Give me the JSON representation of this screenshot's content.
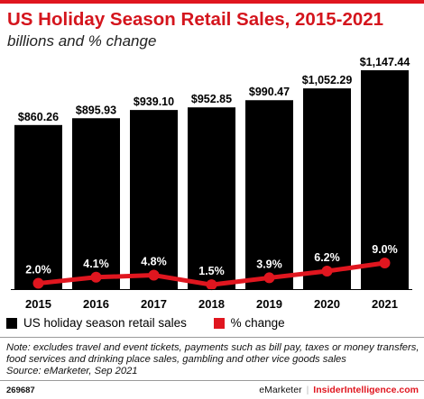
{
  "header": {
    "title": "US Holiday Season Retail Sales, 2015-2021",
    "subtitle": "billions and % change"
  },
  "colors": {
    "accent": "#e0161f",
    "bars": "#000000",
    "bar_labels": "#000000",
    "title": "#d4151d"
  },
  "legend": {
    "bars_label": "US holiday season retail sales",
    "line_label": "% change"
  },
  "note": {
    "line1": "Note: excludes travel and event tickets, payments such as bill pay, taxes or money transfers,",
    "line2": "food services and drinking place sales, gambling and other vice goods sales",
    "source": "Source: eMarketer, Sep 2021"
  },
  "footer": {
    "chart_id": "269687",
    "brand_left": "eMarketer",
    "brand_separator": "|",
    "brand_right": "InsiderIntelligence.com"
  },
  "chart_data": {
    "type": "bar",
    "categories": [
      "2015",
      "2016",
      "2017",
      "2018",
      "2019",
      "2020",
      "2021"
    ],
    "series": [
      {
        "name": "US holiday season retail sales",
        "type": "bar",
        "values": [
          860.26,
          895.93,
          939.1,
          952.85,
          990.47,
          1052.29,
          1147.44
        ],
        "labels": [
          "$860.26",
          "$895.93",
          "$939.10",
          "$952.85",
          "$990.47",
          "$1,052.29",
          "$1,147.44"
        ]
      },
      {
        "name": "% change",
        "type": "line",
        "values": [
          2.0,
          4.1,
          4.8,
          1.5,
          3.9,
          6.2,
          9.0
        ],
        "labels": [
          "2.0%",
          "4.1%",
          "4.8%",
          "1.5%",
          "3.9%",
          "6.2%",
          "9.0%"
        ]
      }
    ],
    "bar_ylim": [
      0,
      1147.44
    ],
    "line_ylim": [
      0,
      30
    ],
    "grid": false,
    "legend_position": "bottom-left"
  }
}
